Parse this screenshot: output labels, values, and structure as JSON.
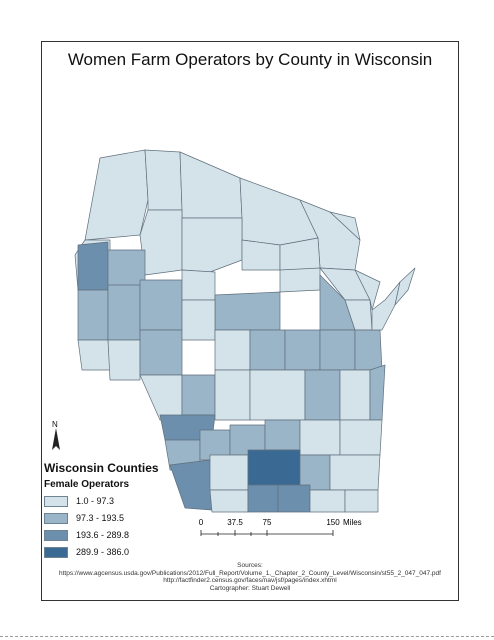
{
  "title": "Women Farm Operators by County in Wisconsin",
  "legend": {
    "title": "Wisconsin Counties",
    "subtitle": "Female Operators",
    "classes": [
      {
        "label": "1.0 - 97.3",
        "color": "#d4e3ea"
      },
      {
        "label": "97.3 - 193.5",
        "color": "#9ab4c8"
      },
      {
        "label": "193.6 - 289.8",
        "color": "#6c8fae"
      },
      {
        "label": "289.9 - 386.0",
        "color": "#3a6a94"
      }
    ]
  },
  "north_arrow": {
    "label": "N"
  },
  "scale_bar": {
    "ticks": [
      "0",
      "37.5",
      "75",
      "150"
    ],
    "unit": "Miles"
  },
  "sources": {
    "heading": "Sources:",
    "line1": "https://www.agcensus.usda.gov/Publications/2012/Full_Report/Volume_1,_Chapter_2_County_Level/Wisconsin/st55_2_047_047.pdf",
    "line2": "http://factfinder2.census.gov/faces/nav/jsf/pages/index.xhtml",
    "cartographer": "Cartographer: Stuart Dewell"
  },
  "border_color": "#5f6f7c"
}
